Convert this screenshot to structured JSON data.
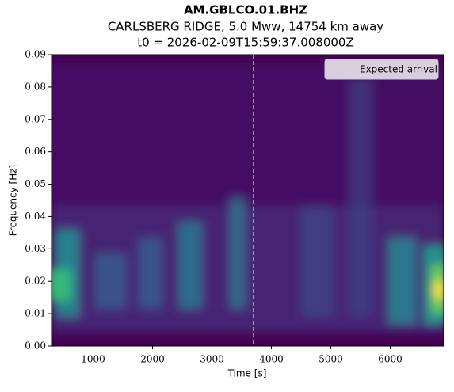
{
  "chart_data": {
    "type": "spectrogram",
    "title": "AM.GBLCO.01.BHZ",
    "subtitle": "CARLSBERG RIDGE, 5.0 Mww, 14754  km away",
    "subtitle2": "t0 = 2026-02-09T15:59:37.008000Z",
    "xlabel": "Time [s]",
    "ylabel": "Frequency [Hz]",
    "xlim": [
      300,
      6900
    ],
    "xticks": [
      1000,
      2000,
      3000,
      4000,
      5000,
      6000
    ],
    "ylim": [
      0,
      0.09
    ],
    "yticks": [
      {
        "value": 0,
        "label": "0.00"
      },
      {
        "value": 0.01,
        "label": "0.01"
      },
      {
        "value": 0.02,
        "label": "0.02"
      },
      {
        "value": 0.03,
        "label": "0.03"
      },
      {
        "value": 0.04,
        "label": "0.04"
      },
      {
        "value": 0.05,
        "label": "0.05"
      },
      {
        "value": 0.06,
        "label": "0.06"
      },
      {
        "value": 0.07,
        "label": "0.07"
      },
      {
        "value": 0.08,
        "label": "0.08"
      },
      {
        "value": 0.09,
        "label": "0.09"
      }
    ],
    "annotations": [
      {
        "x": 3700,
        "label": "Expected arrival",
        "color": "#ffffff"
      }
    ],
    "legend": "upper right"
  }
}
